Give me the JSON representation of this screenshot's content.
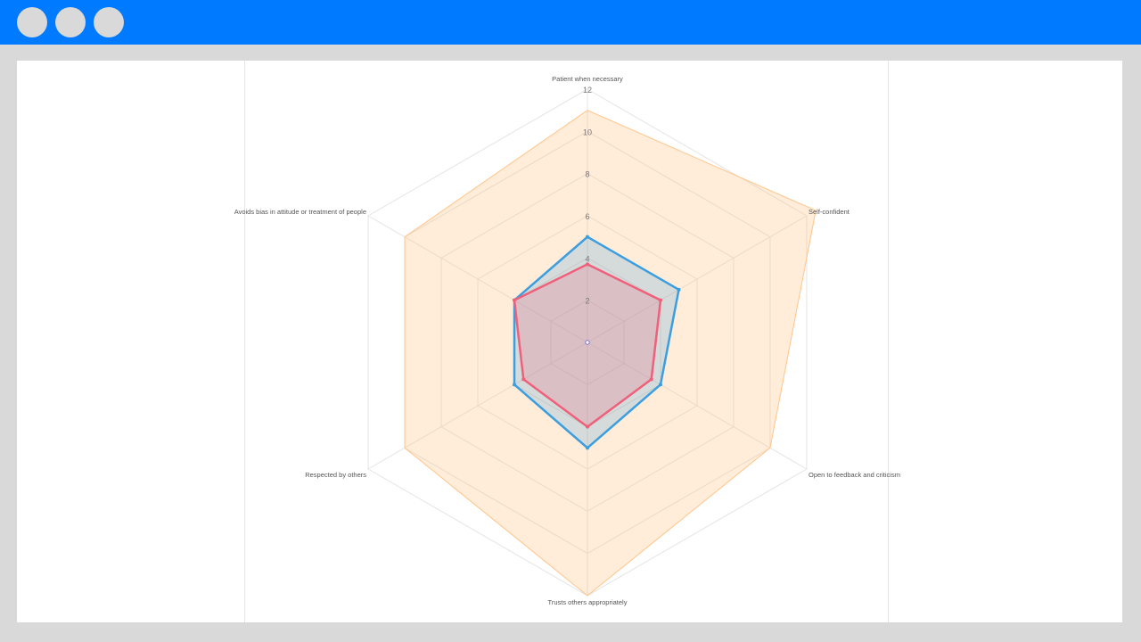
{
  "window": {
    "controls": [
      "circle-button",
      "circle-button",
      "circle-button"
    ]
  },
  "chart_data": {
    "type": "radar",
    "axes": [
      "Patient when necessary",
      "Self-confident",
      "Open to feedback and criticism",
      "Trusts others appropriately",
      "Respected by others",
      "Avoids bias in attitude or treatment of people"
    ],
    "r_ticks": [
      2,
      4,
      6,
      8,
      10,
      12
    ],
    "r_range": [
      0,
      12
    ],
    "series": [
      {
        "values": [
          11,
          12.5,
          10,
          12,
          10,
          10
        ],
        "color": "#ffc58a"
      },
      {
        "values": [
          5,
          5,
          4,
          5,
          4,
          4
        ],
        "color": "#3b9ee0"
      },
      {
        "values": [
          3.7,
          4,
          3.5,
          4,
          3.5,
          4
        ],
        "color": "#f0607a"
      }
    ],
    "grid": true,
    "legend": "none"
  }
}
